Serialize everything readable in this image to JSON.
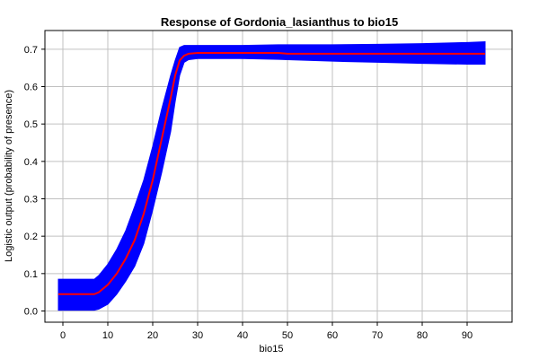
{
  "chart_data": {
    "type": "line",
    "title": "Response of Gordonia_lasianthus to bio15",
    "xlabel": "bio15",
    "ylabel": "Logistic output (probability of presence)",
    "xlim": [
      -4,
      100
    ],
    "ylim": [
      -0.03,
      0.75
    ],
    "xticks": [
      0,
      10,
      20,
      30,
      40,
      50,
      60,
      70,
      80,
      90
    ],
    "yticks": [
      0.0,
      0.1,
      0.2,
      0.3,
      0.4,
      0.5,
      0.6,
      0.7
    ],
    "ytick_labels": [
      "0.0",
      "0.1",
      "0.2",
      "0.3",
      "0.4",
      "0.5",
      "0.6",
      "0.7"
    ],
    "grid": true,
    "colors": {
      "band": "#0000ff",
      "mean": "#ff0000"
    },
    "series": [
      {
        "role": "mean",
        "x": [
          -1,
          7,
          8,
          10,
          12,
          14,
          16,
          18,
          20,
          22,
          24,
          25,
          26,
          27,
          28,
          30,
          35,
          40,
          48,
          50,
          60,
          70,
          80,
          90,
          94
        ],
        "y": [
          0.045,
          0.045,
          0.05,
          0.07,
          0.1,
          0.14,
          0.19,
          0.26,
          0.35,
          0.46,
          0.57,
          0.63,
          0.67,
          0.683,
          0.688,
          0.69,
          0.69,
          0.69,
          0.69,
          0.688,
          0.688,
          0.688,
          0.688,
          0.688,
          0.688
        ]
      },
      {
        "role": "upper",
        "x": [
          -1,
          7,
          8,
          10,
          12,
          14,
          16,
          18,
          20,
          22,
          24,
          25,
          26,
          27,
          28,
          30,
          35,
          40,
          48,
          50,
          60,
          70,
          80,
          90,
          94
        ],
        "y": [
          0.085,
          0.085,
          0.095,
          0.125,
          0.165,
          0.215,
          0.28,
          0.35,
          0.44,
          0.54,
          0.63,
          0.67,
          0.705,
          0.71,
          0.71,
          0.71,
          0.71,
          0.71,
          0.712,
          0.712,
          0.712,
          0.713,
          0.715,
          0.718,
          0.72
        ]
      },
      {
        "role": "lower",
        "x": [
          -1,
          7,
          8,
          10,
          12,
          14,
          16,
          18,
          20,
          22,
          24,
          25,
          26,
          27,
          28,
          30,
          35,
          40,
          48,
          50,
          60,
          70,
          80,
          90,
          94
        ],
        "y": [
          0.002,
          0.002,
          0.005,
          0.018,
          0.045,
          0.08,
          0.12,
          0.18,
          0.27,
          0.37,
          0.48,
          0.56,
          0.63,
          0.665,
          0.672,
          0.675,
          0.675,
          0.675,
          0.673,
          0.672,
          0.668,
          0.665,
          0.662,
          0.66,
          0.66
        ]
      }
    ]
  }
}
